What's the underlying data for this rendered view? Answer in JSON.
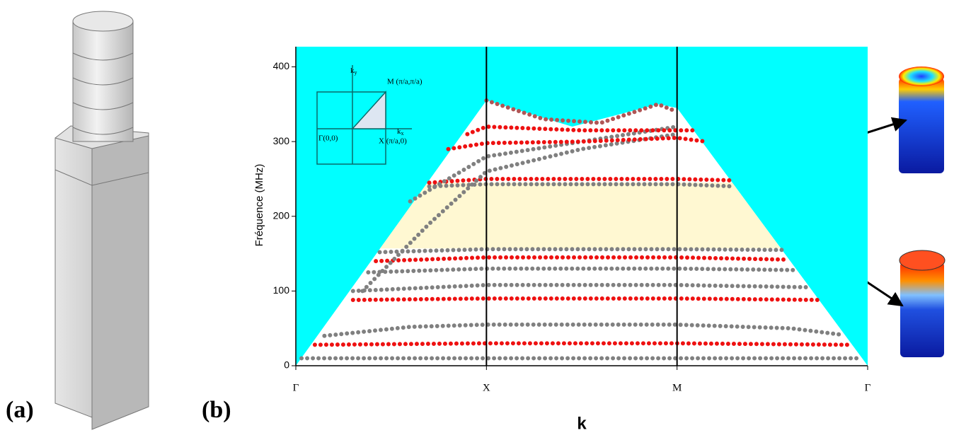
{
  "panels": {
    "a": "(a)",
    "b": "(b)"
  },
  "chart_data": {
    "type": "band",
    "ylabel": "Fréquence (MHz)",
    "xlabel": "k",
    "xlim": [
      0,
      3
    ],
    "xticks": [
      {
        "value": 0,
        "label": "Γ"
      },
      {
        "value": 1,
        "label": "X"
      },
      {
        "value": 2,
        "label": "M"
      },
      {
        "value": 3,
        "label": "Γ"
      }
    ],
    "ylim": [
      0,
      427
    ],
    "yticks": [
      0,
      100,
      200,
      300,
      400
    ],
    "vlines": [
      1,
      2
    ],
    "background_color": "#00ffff",
    "cone_color": "#ffffff",
    "gap_color": "#fff8d2",
    "sound_line": {
      "x": [
        0,
        1,
        1.45,
        1.9,
        2,
        3
      ],
      "values": [
        0,
        355,
        320,
        350,
        345,
        0
      ]
    },
    "band_gap": [
      157,
      245
    ],
    "inset": {
      "ky_base": "k",
      "ky_sub": "y",
      "kx_base": "k",
      "kx_sub": "x",
      "m": "M (π/a,π/a)",
      "gamma": "Γ(0,0)",
      "x": "X (π/a,0)"
    },
    "series": [
      {
        "color": "#808080",
        "x": [
          0.03,
          1,
          2,
          2.97
        ],
        "values": [
          10,
          10,
          10,
          10
        ]
      },
      {
        "color": "#ee1111",
        "x": [
          0.1,
          1,
          2,
          2.9
        ],
        "values": [
          28,
          30,
          30,
          28
        ]
      },
      {
        "color": "#808080",
        "x": [
          0.15,
          0.6,
          1,
          2,
          2.6,
          2.85
        ],
        "values": [
          40,
          52,
          55,
          55,
          50,
          42
        ]
      },
      {
        "color": "#ee1111",
        "x": [
          0.3,
          1,
          2,
          2.75
        ],
        "values": [
          88,
          90,
          90,
          88
        ]
      },
      {
        "color": "#808080",
        "x": [
          0.3,
          1,
          2,
          2.7
        ],
        "values": [
          100,
          108,
          108,
          105
        ]
      },
      {
        "color": "#808080",
        "x": [
          0.38,
          1,
          2,
          2.62
        ],
        "values": [
          125,
          130,
          130,
          128
        ]
      },
      {
        "color": "#ee1111",
        "x": [
          0.42,
          1,
          2,
          2.58
        ],
        "values": [
          140,
          145,
          145,
          142
        ]
      },
      {
        "color": "#808080",
        "x": [
          0.44,
          1,
          2,
          2.55
        ],
        "values": [
          152,
          156,
          156,
          155
        ]
      },
      {
        "color": "#808080",
        "x": [
          0.7,
          1,
          2,
          2.3
        ],
        "values": [
          240,
          243,
          243,
          240
        ]
      },
      {
        "color": "#ee1111",
        "x": [
          0.7,
          1,
          2,
          2.3
        ],
        "values": [
          245,
          250,
          250,
          248
        ]
      },
      {
        "color": "#808080",
        "x": [
          0.35,
          0.7,
          1,
          1.5,
          2
        ],
        "values": [
          100,
          190,
          260,
          290,
          310
        ]
      },
      {
        "color": "#808080",
        "x": [
          0.6,
          1,
          1.5,
          2
        ],
        "values": [
          220,
          280,
          300,
          320
        ]
      },
      {
        "color": "#ee1111",
        "x": [
          0.8,
          1,
          1.5,
          2,
          2.15
        ],
        "values": [
          290,
          298,
          300,
          305,
          300
        ]
      },
      {
        "color": "#ee1111",
        "x": [
          0.9,
          1,
          1.5,
          2,
          2.1
        ],
        "values": [
          310,
          320,
          315,
          315,
          315
        ]
      },
      {
        "color": "#b05555",
        "x": [
          1,
          1.3,
          1.6,
          1.9,
          2
        ],
        "values": [
          355,
          330,
          325,
          350,
          340
        ]
      }
    ]
  }
}
